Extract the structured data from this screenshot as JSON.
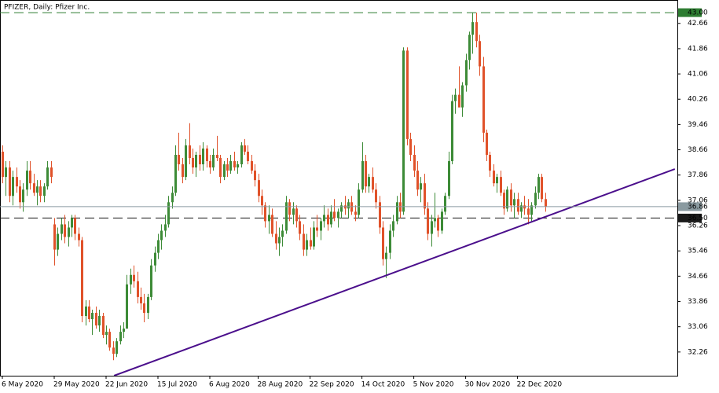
{
  "chart_data": {
    "type": "candlestick",
    "title": "PFIZER, Daily:  Pfizer Inc.",
    "up_color": "#3d8b37",
    "down_color": "#e0522a",
    "categories": [
      "6 May 2020",
      null,
      null,
      null,
      null,
      null,
      null,
      null,
      null,
      null,
      null,
      null,
      null,
      null,
      null,
      "29 May 2020",
      null,
      null,
      null,
      null,
      null,
      null,
      null,
      null,
      null,
      null,
      null,
      null,
      null,
      null,
      "22 Jun 2020",
      null,
      null,
      null,
      null,
      null,
      null,
      null,
      null,
      null,
      null,
      null,
      null,
      null,
      null,
      "15 Jul 2020",
      null,
      null,
      null,
      null,
      null,
      null,
      null,
      null,
      null,
      null,
      null,
      null,
      null,
      null,
      "6 Aug 2020",
      null,
      null,
      null,
      null,
      null,
      null,
      null,
      null,
      null,
      null,
      null,
      null,
      null,
      "28 Aug 2020",
      null,
      null,
      null,
      null,
      null,
      null,
      null,
      null,
      null,
      null,
      null,
      null,
      null,
      null,
      "22 Sep 2020",
      null,
      null,
      null,
      null,
      null,
      null,
      null,
      null,
      null,
      null,
      null,
      null,
      null,
      null,
      "14 Oct 2020",
      null,
      null,
      null,
      null,
      null,
      null,
      null,
      null,
      null,
      null,
      null,
      null,
      null,
      null,
      "5 Nov 2020",
      null,
      null,
      null,
      null,
      null,
      null,
      null,
      null,
      null,
      null,
      null,
      null,
      null,
      null,
      "30 Nov 2020",
      null,
      null,
      null,
      null,
      null,
      null,
      null,
      null,
      null,
      null,
      null,
      null,
      null,
      null,
      "22 Dec 2020",
      null,
      null,
      null,
      null,
      null,
      null,
      null,
      null
    ],
    "candles": [
      [
        38.6,
        38.8,
        37.6,
        37.8
      ],
      [
        37.8,
        38.3,
        37.2,
        38.1
      ],
      [
        38.1,
        38.3,
        37.0,
        37.2
      ],
      [
        37.2,
        38.0,
        36.9,
        37.8
      ],
      [
        37.8,
        38.1,
        37.3,
        37.5
      ],
      [
        37.5,
        37.7,
        36.8,
        37.0
      ],
      [
        37.0,
        37.6,
        36.7,
        37.4
      ],
      [
        37.4,
        38.3,
        37.2,
        38.0
      ],
      [
        38.0,
        38.3,
        37.4,
        37.6
      ],
      [
        37.6,
        37.9,
        37.2,
        37.3
      ],
      [
        37.3,
        37.7,
        36.9,
        37.5
      ],
      [
        37.5,
        37.7,
        37.0,
        37.2
      ],
      [
        37.2,
        37.6,
        37.0,
        37.5
      ],
      [
        37.5,
        38.3,
        37.4,
        38.1
      ],
      [
        38.1,
        38.3,
        37.6,
        37.8
      ],
      [
        36.3,
        36.5,
        35.0,
        35.5
      ],
      [
        35.5,
        36.2,
        35.3,
        36.0
      ],
      [
        36.0,
        36.5,
        35.8,
        36.3
      ],
      [
        36.3,
        36.6,
        35.7,
        35.9
      ],
      [
        35.9,
        36.4,
        35.6,
        36.2
      ],
      [
        36.2,
        36.6,
        35.9,
        36.5
      ],
      [
        36.5,
        36.6,
        35.8,
        36.0
      ],
      [
        36.0,
        36.2,
        35.6,
        35.8
      ],
      [
        35.8,
        35.9,
        33.2,
        33.4
      ],
      [
        33.4,
        33.9,
        33.1,
        33.7
      ],
      [
        33.7,
        33.9,
        33.2,
        33.3
      ],
      [
        33.3,
        33.6,
        32.8,
        33.5
      ],
      [
        33.5,
        33.7,
        33.0,
        33.1
      ],
      [
        33.1,
        33.6,
        32.9,
        33.4
      ],
      [
        33.4,
        33.5,
        32.7,
        32.8
      ],
      [
        32.8,
        33.1,
        32.5,
        32.9
      ],
      [
        32.9,
        33.0,
        32.3,
        32.4
      ],
      [
        32.4,
        32.6,
        32.0,
        32.2
      ],
      [
        32.2,
        32.7,
        32.1,
        32.6
      ],
      [
        32.6,
        33.1,
        32.5,
        32.9
      ],
      [
        32.9,
        33.2,
        32.7,
        33.0
      ],
      [
        33.0,
        34.7,
        33.0,
        34.4
      ],
      [
        34.4,
        34.9,
        34.1,
        34.7
      ],
      [
        34.7,
        35.0,
        34.3,
        34.5
      ],
      [
        34.5,
        34.8,
        33.8,
        34.0
      ],
      [
        34.0,
        34.3,
        33.6,
        33.8
      ],
      [
        33.8,
        34.1,
        33.2,
        33.5
      ],
      [
        33.5,
        34.1,
        33.3,
        34.0
      ],
      [
        34.0,
        35.2,
        33.9,
        35.0
      ],
      [
        35.0,
        35.6,
        34.8,
        35.4
      ],
      [
        35.4,
        36.0,
        35.2,
        35.8
      ],
      [
        35.8,
        36.3,
        35.5,
        36.1
      ],
      [
        36.1,
        36.6,
        35.9,
        36.3
      ],
      [
        36.3,
        37.2,
        36.2,
        37.0
      ],
      [
        37.0,
        37.5,
        36.8,
        37.3
      ],
      [
        37.3,
        38.8,
        37.2,
        38.5
      ],
      [
        38.5,
        39.2,
        38.0,
        38.2
      ],
      [
        38.2,
        38.4,
        37.6,
        37.8
      ],
      [
        37.8,
        39.0,
        37.7,
        38.8
      ],
      [
        38.8,
        39.5,
        38.2,
        38.4
      ],
      [
        38.4,
        38.7,
        37.9,
        38.1
      ],
      [
        38.1,
        38.6,
        37.8,
        38.5
      ],
      [
        38.5,
        38.8,
        38.0,
        38.2
      ],
      [
        38.2,
        38.9,
        38.0,
        38.7
      ],
      [
        38.7,
        38.8,
        38.1,
        38.3
      ],
      [
        38.3,
        38.5,
        37.9,
        38.1
      ],
      [
        38.1,
        38.7,
        38.0,
        38.5
      ],
      [
        38.5,
        39.1,
        38.3,
        38.4
      ],
      [
        38.4,
        38.5,
        37.6,
        37.8
      ],
      [
        37.8,
        38.3,
        37.7,
        38.2
      ],
      [
        38.2,
        38.4,
        37.8,
        38.0
      ],
      [
        38.0,
        38.5,
        37.9,
        38.3
      ],
      [
        38.3,
        38.6,
        38.0,
        38.1
      ],
      [
        38.1,
        38.3,
        37.9,
        38.2
      ],
      [
        38.2,
        38.9,
        38.1,
        38.8
      ],
      [
        38.8,
        39.0,
        38.5,
        38.6
      ],
      [
        38.6,
        38.8,
        38.2,
        38.3
      ],
      [
        38.3,
        38.5,
        37.9,
        38.0
      ],
      [
        38.0,
        38.2,
        37.5,
        37.7
      ],
      [
        37.7,
        37.9,
        37.0,
        37.2
      ],
      [
        37.2,
        37.4,
        36.6,
        36.9
      ],
      [
        36.9,
        37.0,
        36.2,
        36.4
      ],
      [
        36.4,
        36.9,
        36.0,
        36.6
      ],
      [
        36.6,
        36.8,
        35.9,
        36.0
      ],
      [
        36.0,
        36.4,
        35.5,
        35.7
      ],
      [
        35.7,
        36.2,
        35.3,
        35.9
      ],
      [
        35.9,
        36.3,
        35.6,
        36.1
      ],
      [
        36.1,
        37.2,
        36.0,
        37.0
      ],
      [
        37.0,
        37.1,
        36.4,
        36.6
      ],
      [
        36.6,
        37.0,
        36.3,
        36.8
      ],
      [
        36.8,
        36.9,
        36.2,
        36.4
      ],
      [
        36.4,
        36.6,
        35.8,
        36.0
      ],
      [
        36.0,
        36.3,
        35.3,
        35.5
      ],
      [
        35.5,
        36.0,
        35.3,
        35.8
      ],
      [
        35.8,
        36.2,
        35.5,
        35.6
      ],
      [
        35.6,
        36.4,
        35.5,
        36.2
      ],
      [
        36.2,
        36.6,
        35.9,
        36.1
      ],
      [
        36.1,
        36.5,
        35.8,
        36.4
      ],
      [
        36.4,
        36.9,
        36.2,
        36.6
      ],
      [
        36.6,
        36.8,
        36.1,
        36.3
      ],
      [
        36.3,
        36.9,
        36.2,
        36.7
      ],
      [
        36.7,
        37.1,
        36.4,
        36.5
      ],
      [
        36.5,
        36.8,
        36.2,
        36.7
      ],
      [
        36.7,
        37.0,
        36.5,
        36.9
      ],
      [
        36.9,
        37.2,
        36.6,
        36.8
      ],
      [
        36.8,
        37.1,
        36.5,
        37.0
      ],
      [
        37.0,
        37.2,
        36.6,
        36.7
      ],
      [
        36.7,
        36.9,
        36.4,
        36.6
      ],
      [
        36.6,
        37.6,
        36.5,
        37.4
      ],
      [
        37.4,
        38.9,
        37.3,
        38.3
      ],
      [
        38.3,
        38.5,
        37.3,
        37.5
      ],
      [
        37.5,
        37.9,
        37.3,
        37.8
      ],
      [
        37.8,
        38.1,
        37.3,
        37.4
      ],
      [
        37.4,
        37.6,
        36.8,
        37.0
      ],
      [
        37.0,
        37.2,
        36.0,
        36.2
      ],
      [
        36.2,
        36.4,
        35.0,
        35.2
      ],
      [
        35.2,
        35.6,
        34.6,
        35.4
      ],
      [
        35.4,
        36.3,
        35.2,
        36.1
      ],
      [
        36.1,
        36.6,
        35.9,
        36.4
      ],
      [
        36.4,
        37.2,
        36.3,
        37.0
      ],
      [
        37.0,
        37.3,
        36.5,
        36.7
      ],
      [
        36.7,
        41.9,
        36.6,
        41.8
      ],
      [
        41.8,
        41.9,
        38.8,
        39.0
      ],
      [
        39.0,
        39.2,
        38.3,
        38.5
      ],
      [
        38.5,
        38.8,
        37.8,
        38.0
      ],
      [
        38.0,
        38.3,
        37.2,
        37.4
      ],
      [
        37.4,
        37.8,
        37.0,
        37.6
      ],
      [
        37.6,
        37.9,
        36.6,
        36.8
      ],
      [
        36.8,
        37.0,
        35.8,
        36.0
      ],
      [
        36.0,
        36.6,
        35.6,
        36.4
      ],
      [
        36.4,
        37.3,
        36.2,
        36.5
      ],
      [
        36.5,
        36.6,
        35.9,
        36.1
      ],
      [
        36.1,
        36.8,
        36.0,
        36.7
      ],
      [
        36.7,
        37.3,
        36.6,
        37.2
      ],
      [
        37.2,
        38.6,
        37.1,
        38.3
      ],
      [
        38.3,
        40.4,
        38.2,
        40.2
      ],
      [
        40.2,
        40.6,
        39.8,
        40.4
      ],
      [
        40.4,
        41.3,
        40.1,
        40.0
      ],
      [
        40.0,
        40.8,
        39.7,
        40.7
      ],
      [
        40.7,
        41.7,
        40.5,
        41.5
      ],
      [
        41.5,
        42.4,
        41.2,
        42.3
      ],
      [
        42.3,
        43.0,
        41.7,
        42.7
      ],
      [
        42.7,
        43.0,
        41.9,
        42.1
      ],
      [
        42.1,
        42.3,
        41.0,
        41.3
      ],
      [
        41.3,
        41.6,
        38.9,
        39.2
      ],
      [
        39.2,
        39.3,
        38.3,
        38.5
      ],
      [
        38.5,
        38.6,
        37.8,
        38.0
      ],
      [
        38.0,
        38.2,
        37.5,
        37.6
      ],
      [
        37.6,
        37.9,
        37.3,
        37.8
      ],
      [
        37.8,
        38.0,
        37.2,
        37.3
      ],
      [
        37.3,
        37.4,
        36.6,
        36.8
      ],
      [
        36.8,
        37.5,
        36.7,
        37.4
      ],
      [
        37.4,
        37.6,
        36.7,
        36.9
      ],
      [
        36.9,
        37.3,
        36.5,
        37.1
      ],
      [
        37.1,
        37.3,
        36.6,
        36.7
      ],
      [
        36.7,
        37.0,
        36.5,
        36.9
      ],
      [
        36.9,
        37.2,
        36.6,
        36.8
      ],
      [
        36.8,
        37.1,
        36.3,
        36.6
      ],
      [
        36.6,
        37.0,
        36.4,
        36.9
      ],
      [
        36.9,
        37.5,
        36.8,
        37.3
      ],
      [
        37.3,
        37.9,
        37.1,
        37.8
      ],
      [
        37.8,
        37.9,
        37.0,
        37.1
      ],
      [
        37.1,
        37.3,
        36.7,
        36.86
      ]
    ],
    "xlim": [
      -0.68,
      195.23
    ],
    "ylim": [
      31.51,
      43.4
    ],
    "yticks": [
      42.66,
      41.86,
      41.06,
      40.26,
      39.46,
      38.66,
      37.86,
      37.06,
      36.26,
      35.46,
      34.66,
      33.86,
      33.06,
      32.26
    ],
    "hlines": [
      {
        "value": 43.0,
        "label": "43.00",
        "color": "#2e7d32"
      },
      {
        "value": 36.5,
        "label": "36.50",
        "color": "#1a1a1a"
      }
    ],
    "last_price": {
      "value": 36.86,
      "label": "36.86",
      "color": "#8a9aa0"
    },
    "trendline": {
      "x": [
        32.3,
        194.5
      ],
      "y": [
        31.51,
        38.05
      ],
      "color": "#4b0f8c"
    }
  }
}
